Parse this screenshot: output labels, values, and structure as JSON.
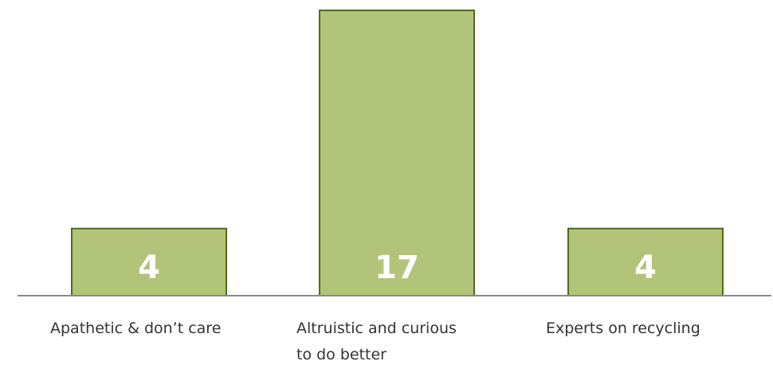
{
  "chart_data": {
    "type": "bar",
    "categories": [
      [
        "Apathetic & don’t care"
      ],
      [
        "Altruistic and curious",
        "to do better"
      ],
      [
        "Experts on recycling"
      ]
    ],
    "values": [
      4,
      17,
      4
    ],
    "ylim": [
      0,
      17
    ],
    "grid": false,
    "colors": {
      "bar_fill": "#b2c47a",
      "bar_stroke": "#4f6b1c",
      "data_label": "#ffffff",
      "baseline": "#8a8a8a",
      "category_label": "#333333"
    }
  }
}
